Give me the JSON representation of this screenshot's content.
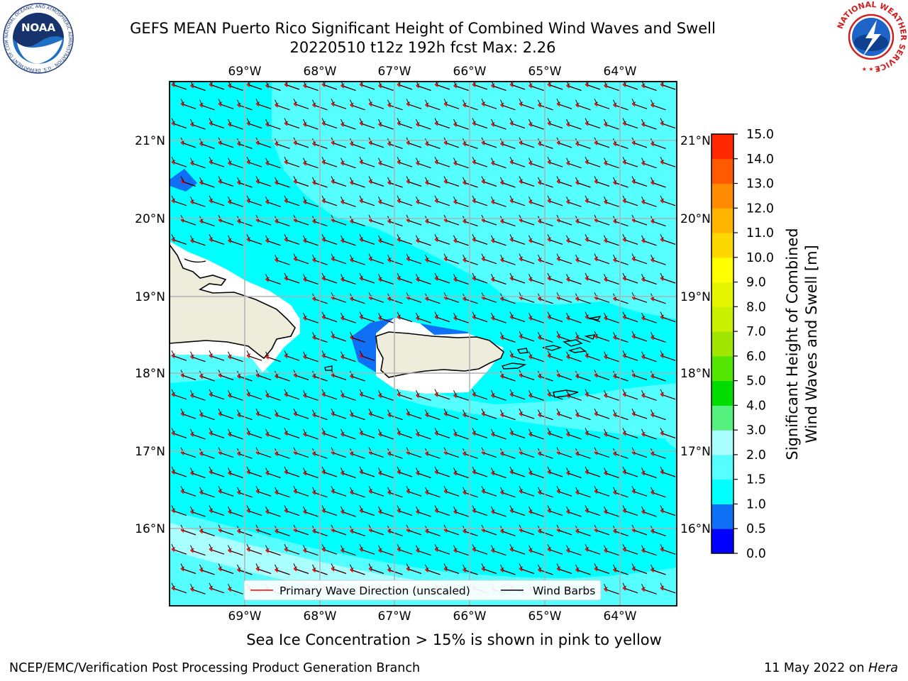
{
  "title": {
    "line1": "GEFS MEAN Puerto Rico Significant Height of Combined Wind Waves and Swell",
    "line2": "20220510 t12z 192h fcst   Max: 2.26"
  },
  "map": {
    "lon_labels": [
      "69°W",
      "68°W",
      "67°W",
      "66°W",
      "65°W",
      "64°W"
    ],
    "lat_labels": [
      "21°N",
      "20°N",
      "19°N",
      "18°N",
      "17°N",
      "16°N"
    ],
    "colors": {
      "sea": "#00ffff",
      "sea_light": "#55ffff",
      "sea_lighter": "#aaffff",
      "land": "#eeecdb",
      "coast": "#000000",
      "wave_arrow": "#ff0000",
      "grid": "#b0b0b0"
    }
  },
  "legend": {
    "primary_wave": "Primary Wave Direction (unscaled)",
    "wind_barbs": "Wind Barbs"
  },
  "colorbar": {
    "label_line1": "Significant Height of Combined",
    "label_line2": "Wind Waves and Swell [m]",
    "ticks": [
      "0.0",
      "0.5",
      "1.0",
      "1.5",
      "2.0",
      "3.0",
      "4.0",
      "5.0",
      "6.0",
      "7.0",
      "8.0",
      "9.0",
      "10.0",
      "11.0",
      "12.0",
      "13.0",
      "14.0",
      "15.0"
    ],
    "colors": [
      "#0000ff",
      "#0f70f5",
      "#00ffff",
      "#55ffff",
      "#aaffff",
      "#55f07d",
      "#00dc00",
      "#55e600",
      "#a0e600",
      "#c8f000",
      "#e6f500",
      "#ffff00",
      "#ffd700",
      "#ffb400",
      "#ff8c00",
      "#ff5a00",
      "#ff2800"
    ]
  },
  "logos": {
    "noaa": "NOAA",
    "noaa_ring": "NATIONAL OCEANIC AND ATMOSPHERIC ADMINISTRATION · U.S. DEPARTMENT OF COMMERCE",
    "nws_ring": "NATIONAL WEATHER SERVICE"
  },
  "sea_ice_note": "Sea Ice Concentration > 15% is shown in pink to yellow",
  "footer": {
    "left": "NCEP/EMC/Verification Post Processing Product Generation Branch",
    "date": "11 May 2022 on ",
    "host": "Hera"
  }
}
